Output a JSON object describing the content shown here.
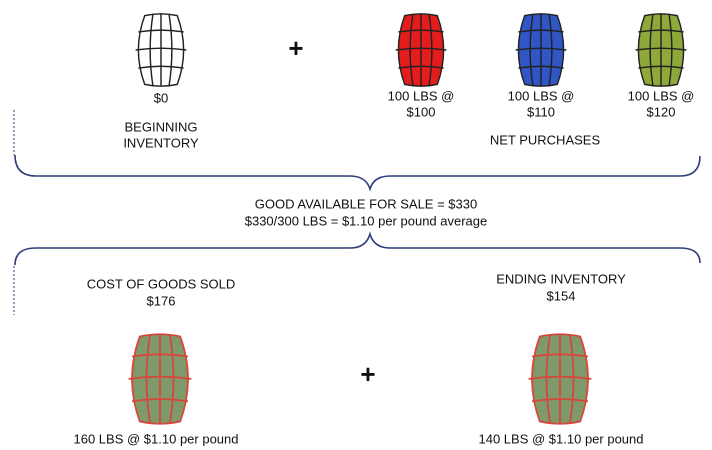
{
  "beginning_inventory": {
    "amount": "$0",
    "label_lines": [
      "BEGINNING",
      "INVENTORY"
    ]
  },
  "operator_top": "+",
  "purchases": [
    {
      "line1": "100 LBS @",
      "line2": "$100"
    },
    {
      "line1": "100 LBS @",
      "line2": "$110"
    },
    {
      "line1": "100 LBS @",
      "line2": "$120"
    }
  ],
  "net_purchases_label": "NET PURCHASES",
  "available": {
    "line1": "GOOD AVAILABLE FOR SALE = $330",
    "line2": "$330/300 LBS = $1.10 per pound average"
  },
  "cost_of_goods_sold": {
    "label": "COST OF GOODS SOLD",
    "amount": "$176",
    "caption": "160 LBS @ $1.10 per pound"
  },
  "operator_bottom": "+",
  "ending_inventory": {
    "label": "ENDING INVENTORY",
    "amount": "$154",
    "caption": "140 LBS @ $1.10 per pound"
  }
}
